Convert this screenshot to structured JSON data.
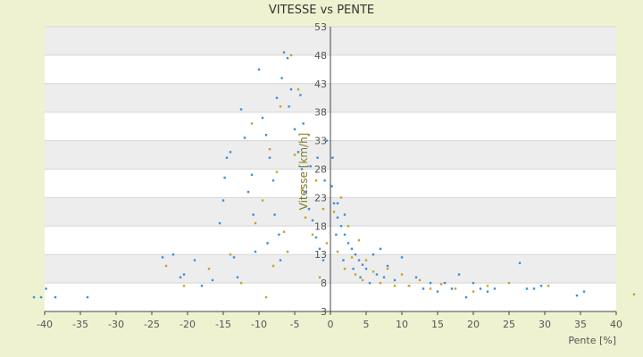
{
  "chart_data": {
    "type": "scatter",
    "title": "VITESSE vs PENTE",
    "xlabel": "Pente [%]",
    "ylabel": "Vitesse [km/h]",
    "xlim": [
      -40,
      40
    ],
    "ylim": [
      3,
      53
    ],
    "x_ticks": [
      "-40",
      "-35",
      "-30",
      "-25",
      "-20",
      "-15",
      "-10",
      "-5",
      "0",
      "5",
      "10",
      "15",
      "20",
      "25",
      "30",
      "35",
      "40"
    ],
    "y_ticks": [
      "3",
      "8",
      "13",
      "18",
      "23",
      "28",
      "33",
      "38",
      "43",
      "48",
      "53"
    ],
    "grid": true,
    "legend": "none",
    "colors": {
      "background": "#eef2d0",
      "plot_band_light": "#ffffff",
      "plot_band_dark": "#ededed",
      "series_a": "#3a8fd8",
      "series_b": "#c8a21c",
      "axis": "#555555"
    },
    "series": [
      {
        "color": "#3a8fd8",
        "points": [
          [
            -40.5,
            5.5
          ],
          [
            -38.5,
            5.5
          ],
          [
            -34,
            5.5
          ],
          [
            -39.8,
            7
          ],
          [
            -41.5,
            5.5
          ],
          [
            -23.5,
            12.5
          ],
          [
            -22,
            13
          ],
          [
            -21,
            9
          ],
          [
            -20.5,
            9.5
          ],
          [
            -19,
            12
          ],
          [
            -18,
            7.5
          ],
          [
            -16.5,
            8.5
          ],
          [
            -15.5,
            18.5
          ],
          [
            -15,
            22.5
          ],
          [
            -14.8,
            26.5
          ],
          [
            -14.5,
            30
          ],
          [
            -14,
            31
          ],
          [
            -13.5,
            12.5
          ],
          [
            -13,
            9
          ],
          [
            -12.5,
            38.5
          ],
          [
            -12,
            33.5
          ],
          [
            -11.5,
            24
          ],
          [
            -10.8,
            20
          ],
          [
            -10.5,
            13.5
          ],
          [
            -10,
            45.5
          ],
          [
            -9.5,
            37
          ],
          [
            -9,
            34
          ],
          [
            -8.5,
            30
          ],
          [
            -8,
            26
          ],
          [
            -7.8,
            20
          ],
          [
            -7.5,
            40.5
          ],
          [
            -7.2,
            16.5
          ],
          [
            -7,
            12
          ],
          [
            -6.5,
            48.5
          ],
          [
            -6,
            47.5
          ],
          [
            -5.5,
            42
          ],
          [
            -5,
            35
          ],
          [
            -4.5,
            31
          ],
          [
            -4,
            28
          ],
          [
            -3.5,
            24
          ],
          [
            -3,
            21
          ],
          [
            -2.5,
            19
          ],
          [
            -2,
            16
          ],
          [
            -1.5,
            14
          ],
          [
            -1,
            12
          ],
          [
            -0.5,
            33
          ],
          [
            0.2,
            25
          ],
          [
            0.5,
            22
          ],
          [
            1,
            19.5
          ],
          [
            1.5,
            18
          ],
          [
            2,
            16.5
          ],
          [
            2.5,
            15
          ],
          [
            3,
            14
          ],
          [
            3.5,
            13
          ],
          [
            4,
            12
          ],
          [
            4.5,
            11.2
          ],
          [
            5,
            10.5
          ],
          [
            6,
            13
          ],
          [
            6.5,
            9.5
          ],
          [
            7,
            14
          ],
          [
            7.5,
            9
          ],
          [
            8,
            11
          ],
          [
            9,
            8.5
          ],
          [
            10,
            12.5
          ],
          [
            11,
            7.5
          ],
          [
            12,
            9
          ],
          [
            13,
            7
          ],
          [
            14,
            8
          ],
          [
            15,
            6.5
          ],
          [
            16,
            8
          ],
          [
            17,
            7
          ],
          [
            18,
            9.5
          ],
          [
            19,
            5.5
          ],
          [
            20,
            8
          ],
          [
            21,
            7
          ],
          [
            22,
            6.5
          ],
          [
            23,
            7
          ],
          [
            26.5,
            11.5
          ],
          [
            27.5,
            7
          ],
          [
            28.5,
            7
          ],
          [
            29.5,
            7.5
          ],
          [
            34.5,
            5.8
          ],
          [
            35.5,
            6.5
          ],
          [
            1,
            22
          ],
          [
            2,
            20
          ],
          [
            0.8,
            16.5
          ],
          [
            1.8,
            12
          ],
          [
            3.2,
            10.5
          ],
          [
            4.2,
            9
          ],
          [
            5.5,
            8
          ],
          [
            -2.8,
            28.5
          ],
          [
            -3.8,
            36
          ],
          [
            -5.8,
            39
          ],
          [
            -8.8,
            15
          ],
          [
            -11,
            27
          ],
          [
            -6.8,
            44
          ],
          [
            -4.2,
            41
          ],
          [
            -1.8,
            30
          ],
          [
            -0.8,
            26
          ],
          [
            0.3,
            30
          ]
        ]
      },
      {
        "color": "#c8a21c",
        "points": [
          [
            -23,
            11
          ],
          [
            -20.5,
            7.5
          ],
          [
            -17,
            10.5
          ],
          [
            -14,
            13
          ],
          [
            -12.5,
            8
          ],
          [
            -11,
            36
          ],
          [
            -10.5,
            18.5
          ],
          [
            -9.5,
            22.5
          ],
          [
            -9,
            5.5
          ],
          [
            -8.5,
            31.5
          ],
          [
            -8,
            11
          ],
          [
            -7.5,
            27.5
          ],
          [
            -7,
            39
          ],
          [
            -6.5,
            17
          ],
          [
            -6,
            13.5
          ],
          [
            -5.5,
            48
          ],
          [
            -5,
            30.5
          ],
          [
            -4.5,
            42
          ],
          [
            -4,
            24.5
          ],
          [
            -3.5,
            19.5
          ],
          [
            -3,
            34
          ],
          [
            -2.5,
            16.5
          ],
          [
            -2,
            26
          ],
          [
            -1.5,
            9
          ],
          [
            -1,
            21
          ],
          [
            -0.5,
            15
          ],
          [
            0.5,
            20.5
          ],
          [
            1,
            13.5
          ],
          [
            1.5,
            23
          ],
          [
            2,
            10.5
          ],
          [
            2.5,
            18
          ],
          [
            3,
            12.5
          ],
          [
            3.5,
            9.5
          ],
          [
            4,
            15.5
          ],
          [
            4.5,
            8.5
          ],
          [
            5,
            12
          ],
          [
            6,
            10
          ],
          [
            7,
            8
          ],
          [
            8,
            10.5
          ],
          [
            9,
            7.5
          ],
          [
            10,
            9.5
          ],
          [
            11,
            7.5
          ],
          [
            12.5,
            8.5
          ],
          [
            14,
            7
          ],
          [
            15.5,
            7.8
          ],
          [
            17.5,
            7
          ],
          [
            20,
            6.5
          ],
          [
            22,
            7.5
          ],
          [
            25,
            8
          ],
          [
            30.5,
            7.5
          ],
          [
            42.5,
            6
          ]
        ]
      }
    ]
  }
}
